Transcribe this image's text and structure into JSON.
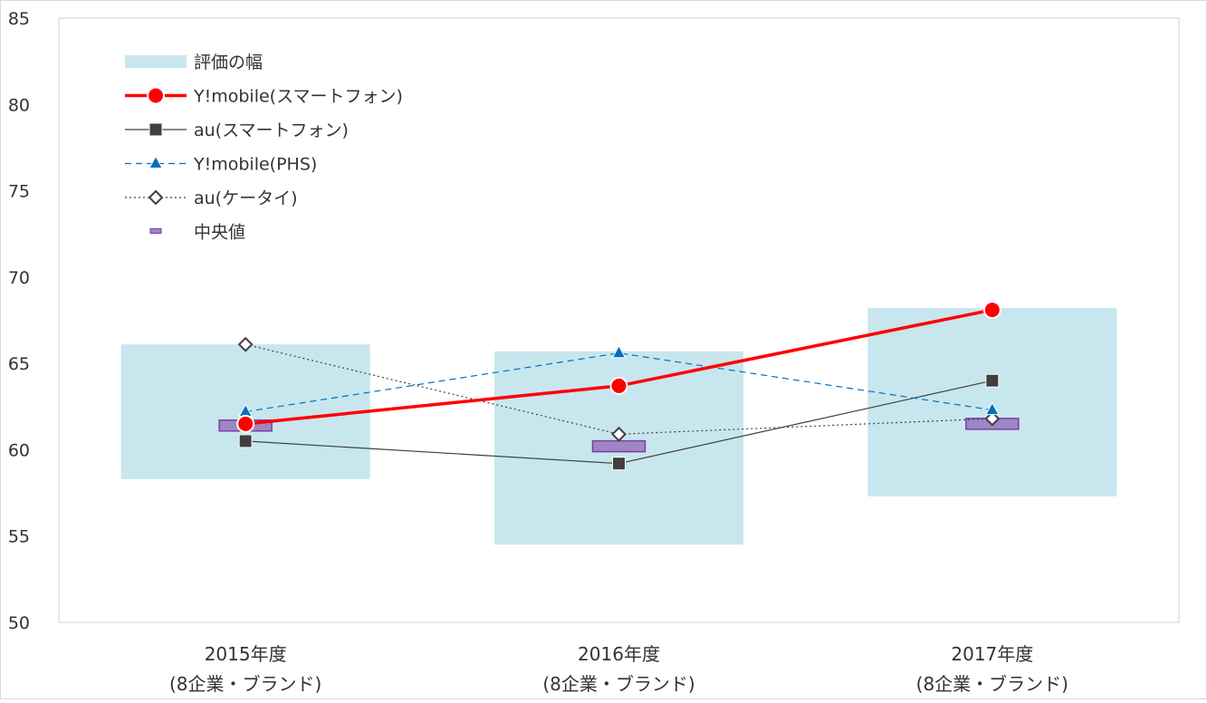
{
  "chart_data": {
    "type": "line",
    "categories": [
      [
        "2015年度",
        "(8企業・ブランド)"
      ],
      [
        "2016年度",
        "(8企業・ブランド)"
      ],
      [
        "2017年度",
        "(8企業・ブランド)"
      ]
    ],
    "ylim": [
      50,
      85
    ],
    "yticks": [
      50,
      55,
      60,
      65,
      70,
      75,
      80,
      85
    ],
    "grid": false,
    "legend_position": "top-left",
    "range_band": {
      "name": "評価の幅",
      "color": "#c8e6ee",
      "low": [
        58.3,
        54.5,
        57.3
      ],
      "high": [
        66.1,
        65.7,
        68.2
      ]
    },
    "median": {
      "name": "中央値",
      "color": "#9f86c3",
      "edge_color": "#7a3fa5",
      "values": [
        61.4,
        60.2,
        61.5
      ]
    },
    "series": [
      {
        "name": "Y!mobile(スマートフォン)",
        "values": [
          61.5,
          63.7,
          68.1
        ],
        "color": "#ff0000",
        "marker": "circle",
        "line": "solid-thick"
      },
      {
        "name": "au(スマートフォン)",
        "values": [
          60.5,
          59.2,
          64.0
        ],
        "color": "#404040",
        "marker": "square",
        "line": "solid-thin"
      },
      {
        "name": "Y!mobile(PHS)",
        "values": [
          62.2,
          65.6,
          62.3
        ],
        "color": "#0070c0",
        "marker": "triangle",
        "line": "dashed"
      },
      {
        "name": "au(ケータイ)",
        "values": [
          66.1,
          60.9,
          61.8
        ],
        "color": "#404040",
        "marker": "diamond",
        "line": "dotted"
      }
    ]
  }
}
